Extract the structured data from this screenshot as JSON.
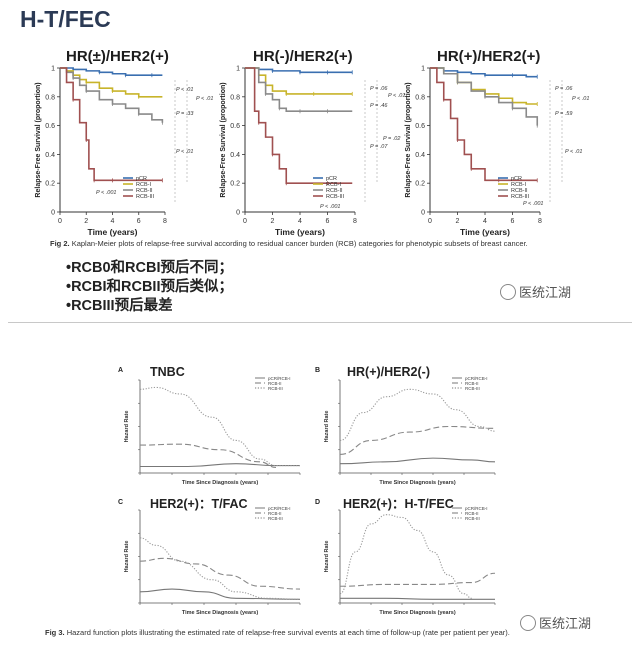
{
  "heading": "H-T/FEC",
  "km_panels": [
    {
      "title": "HR(±)/HER2(+)",
      "ylabel": "Relapse-Free Survival (proportion)",
      "xlabel": "Time (years)",
      "xticks": [
        "0",
        "2",
        "4",
        "6",
        "8"
      ],
      "yticks": [
        "1",
        "0.8",
        "0.6",
        "0.4",
        "0.2",
        "0"
      ],
      "legend": [
        "pCR",
        "RCB-I",
        "RCB-II",
        "RCB-III"
      ],
      "pvalues": [
        "P < .01",
        "P < .01",
        "P = .33",
        "P < .01",
        "P < .001"
      ]
    },
    {
      "title": "HR(-)/HER2(+)",
      "ylabel": "Relapse-Free Survival (proportion)",
      "xlabel": "Time (years)",
      "xticks": [
        "0",
        "2",
        "4",
        "6",
        "8"
      ],
      "yticks": [
        "1",
        "0.8",
        "0.6",
        "0.4",
        "0.2",
        "0"
      ],
      "legend": [
        "pCR",
        "RCB-I",
        "RCB-II",
        "RCB-III"
      ],
      "pvalues": [
        "P = .06",
        "P < .01",
        "P = .46",
        "P = .02",
        "P = .07",
        "P < .001"
      ]
    },
    {
      "title": "HR(+)/HER2(+)",
      "ylabel": "Relapse-Free Survival (proportion)",
      "xlabel": "Time (years)",
      "xticks": [
        "0",
        "2",
        "4",
        "6",
        "8"
      ],
      "yticks": [
        "1",
        "0.8",
        "0.6",
        "0.4",
        "0.2",
        "0"
      ],
      "legend": [
        "pCR",
        "RCB-I",
        "RCB-II",
        "RCB-III"
      ],
      "pvalues": [
        "P = .06",
        "P < .01",
        "P = .59",
        "P < .01",
        "P < .001"
      ]
    }
  ],
  "fig2_caption_label": "Fig 2.",
  "fig2_caption": "Kaplan-Meier plots of relapse-free survival according to residual cancer burden (RCB) categories for phenotypic subsets of breast cancer.",
  "bullets": [
    "•RCB0和RCBI预后不同；",
    "•RCBI和RCBII预后类似；",
    "•RCBIII预后最差"
  ],
  "watermark": "医统江湖",
  "hazard_panels": [
    {
      "letter": "A",
      "name": "TNBC",
      "ylabel": "Hazard Rate",
      "xlabel": "Time Since Diagnosis (years)",
      "legend": [
        "pCR/RCB-I",
        "RCB-II",
        "RCB-III"
      ]
    },
    {
      "letter": "B",
      "name": "HR(+)/HER2(-)",
      "ylabel": "Hazard Rate",
      "xlabel": "Time Since Diagnosis (years)",
      "legend": [
        "pCR/RCB-I",
        "RCB-II",
        "RCB-III"
      ]
    },
    {
      "letter": "C",
      "name": "HER2(+)：T/FAC",
      "ylabel": "Hazard Rate",
      "xlabel": "Time Since Diagnosis (years)",
      "legend": [
        "pCR/RCB-I",
        "RCB-II",
        "RCB-III"
      ]
    },
    {
      "letter": "D",
      "name": "HER2(+)：H-T/FEC",
      "ylabel": "Hazard Rate",
      "xlabel": "Time Since Diagnosis (years)",
      "legend": [
        "pCR/RCB-I",
        "RCB-II",
        "RCB-III"
      ]
    }
  ],
  "fig3_caption_label": "Fig 3.",
  "fig3_caption": "Hazard function plots illustrating the estimated rate of relapse-free survival events at each time of follow-up (rate per patient per year).",
  "chart_data": [
    {
      "type": "line",
      "title": "HR(±)/HER2(+)",
      "xlabel": "Time (years)",
      "ylabel": "Relapse-Free Survival (proportion)",
      "xlim": [
        0,
        8
      ],
      "ylim": [
        0,
        1
      ],
      "series": [
        {
          "name": "pCR",
          "color": "#3a6fb0",
          "x": [
            0,
            0.5,
            1,
            2,
            3,
            4,
            5,
            6,
            7,
            7.8
          ],
          "y": [
            1,
            1,
            0.99,
            0.98,
            0.97,
            0.96,
            0.95,
            0.95,
            0.95,
            0.95
          ]
        },
        {
          "name": "RCB-I",
          "color": "#c8b42a",
          "x": [
            0,
            0.5,
            1,
            1.5,
            2,
            3,
            4,
            5,
            6,
            7.8
          ],
          "y": [
            1,
            0.98,
            0.95,
            0.92,
            0.9,
            0.86,
            0.84,
            0.82,
            0.8,
            0.8
          ]
        },
        {
          "name": "RCB-II",
          "color": "#8a8a8a",
          "x": [
            0,
            0.5,
            1,
            1.5,
            2,
            3,
            4,
            5,
            6,
            7,
            7.8
          ],
          "y": [
            1,
            0.97,
            0.93,
            0.88,
            0.84,
            0.78,
            0.75,
            0.72,
            0.68,
            0.64,
            0.62
          ]
        },
        {
          "name": "RCB-III",
          "color": "#a05050",
          "x": [
            0,
            0.5,
            1,
            1.5,
            2,
            2.2,
            2.6,
            3,
            4,
            6,
            7.8
          ],
          "y": [
            1,
            0.9,
            0.78,
            0.62,
            0.5,
            0.3,
            0.22,
            0.22,
            0.22,
            0.22,
            0.22
          ]
        }
      ]
    },
    {
      "type": "line",
      "title": "HR(-)/HER2(+)",
      "xlabel": "Time (years)",
      "ylabel": "Relapse-Free Survival (proportion)",
      "xlim": [
        0,
        8
      ],
      "ylim": [
        0,
        1
      ],
      "series": [
        {
          "name": "pCR",
          "color": "#3a6fb0",
          "x": [
            0,
            1,
            2,
            3,
            4,
            5,
            6,
            7,
            7.8
          ],
          "y": [
            1,
            0.99,
            0.98,
            0.98,
            0.97,
            0.97,
            0.97,
            0.97,
            0.97
          ]
        },
        {
          "name": "RCB-I",
          "color": "#c8b42a",
          "x": [
            0,
            1,
            1.5,
            2,
            3,
            4,
            5,
            6,
            7.8
          ],
          "y": [
            1,
            0.95,
            0.88,
            0.84,
            0.82,
            0.82,
            0.82,
            0.82,
            0.82
          ]
        },
        {
          "name": "RCB-II",
          "color": "#8a8a8a",
          "x": [
            0,
            1,
            1.5,
            2,
            2.5,
            3,
            4,
            5,
            6,
            7.8
          ],
          "y": [
            1,
            0.9,
            0.82,
            0.78,
            0.72,
            0.7,
            0.7,
            0.7,
            0.7,
            0.7
          ]
        },
        {
          "name": "RCB-III",
          "color": "#a05050",
          "x": [
            0,
            0.7,
            1,
            1.5,
            2,
            2.5,
            3,
            4,
            6,
            7.8
          ],
          "y": [
            1,
            0.7,
            0.62,
            0.52,
            0.4,
            0.3,
            0.2,
            0.2,
            0.2,
            0.2
          ]
        }
      ]
    },
    {
      "type": "line",
      "title": "HR(+)/HER2(+)",
      "xlabel": "Time (years)",
      "ylabel": "Relapse-Free Survival (proportion)",
      "xlim": [
        0,
        8
      ],
      "ylim": [
        0,
        1
      ],
      "series": [
        {
          "name": "pCR",
          "color": "#3a6fb0",
          "x": [
            0,
            1,
            2,
            3,
            4,
            5,
            6,
            7,
            7.8
          ],
          "y": [
            1,
            0.98,
            0.97,
            0.96,
            0.95,
            0.95,
            0.95,
            0.94,
            0.94
          ]
        },
        {
          "name": "RCB-I",
          "color": "#c8b42a",
          "x": [
            0,
            1,
            2,
            3,
            4,
            5,
            6,
            7,
            7.8
          ],
          "y": [
            1,
            0.96,
            0.9,
            0.85,
            0.82,
            0.79,
            0.76,
            0.75,
            0.75
          ]
        },
        {
          "name": "RCB-II",
          "color": "#8a8a8a",
          "x": [
            0,
            1,
            2,
            3,
            4,
            5,
            6,
            7,
            7.8
          ],
          "y": [
            1,
            0.96,
            0.9,
            0.84,
            0.8,
            0.76,
            0.72,
            0.66,
            0.6
          ]
        },
        {
          "name": "RCB-III",
          "color": "#a05050",
          "x": [
            0,
            0.5,
            1,
            1.5,
            2,
            2.5,
            3,
            4,
            5,
            6,
            7.8
          ],
          "y": [
            1,
            0.9,
            0.78,
            0.65,
            0.5,
            0.4,
            0.3,
            0.22,
            0.22,
            0.22,
            0.22
          ]
        }
      ]
    }
  ]
}
